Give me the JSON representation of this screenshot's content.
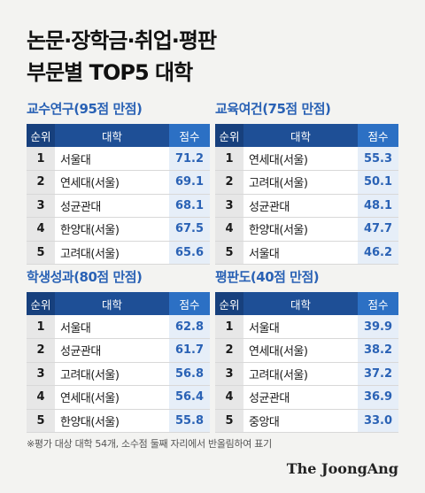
{
  "title": {
    "line1": "논문·장학금·취업·평판",
    "line2": "부문별 TOP5 대학"
  },
  "header": {
    "rank": "순위",
    "university": "대학",
    "score": "점수"
  },
  "panels": [
    {
      "title": "교수연구(95점 만점)",
      "rows": [
        {
          "rank": "1",
          "name": "서울대",
          "score": "71.2"
        },
        {
          "rank": "2",
          "name": "연세대(서울)",
          "score": "69.1"
        },
        {
          "rank": "3",
          "name": "성균관대",
          "score": "68.1"
        },
        {
          "rank": "4",
          "name": "한양대(서울)",
          "score": "67.5"
        },
        {
          "rank": "5",
          "name": "고려대(서울)",
          "score": "65.6"
        }
      ]
    },
    {
      "title": "교육여건(75점 만점)",
      "rows": [
        {
          "rank": "1",
          "name": "연세대(서울)",
          "score": "55.3"
        },
        {
          "rank": "2",
          "name": "고려대(서울)",
          "score": "50.1"
        },
        {
          "rank": "3",
          "name": "성균관대",
          "score": "48.1"
        },
        {
          "rank": "4",
          "name": "한양대(서울)",
          "score": "47.7"
        },
        {
          "rank": "5",
          "name": "서울대",
          "score": "46.2"
        }
      ]
    },
    {
      "title": "학생성과(80점 만점)",
      "rows": [
        {
          "rank": "1",
          "name": "서울대",
          "score": "62.8"
        },
        {
          "rank": "2",
          "name": "성균관대",
          "score": "61.7"
        },
        {
          "rank": "3",
          "name": "고려대(서울)",
          "score": "56.8"
        },
        {
          "rank": "4",
          "name": "연세대(서울)",
          "score": "56.4"
        },
        {
          "rank": "5",
          "name": "한양대(서울)",
          "score": "55.8"
        }
      ]
    },
    {
      "title": "평판도(40점 만점)",
      "rows": [
        {
          "rank": "1",
          "name": "서울대",
          "score": "39.9"
        },
        {
          "rank": "2",
          "name": "연세대(서울)",
          "score": "38.2"
        },
        {
          "rank": "3",
          "name": "고려대(서울)",
          "score": "37.2"
        },
        {
          "rank": "4",
          "name": "성균관대",
          "score": "36.9"
        },
        {
          "rank": "5",
          "name": "중앙대",
          "score": "33.0"
        }
      ]
    }
  ],
  "footnote": "※평가 대상 대학 54개, 소수점 둘째 자리에서 반올림하여 표기",
  "logo": "The JoongAng",
  "colors": {
    "accent": "#2a62b5",
    "header_bg": "#1e4f96",
    "score_bg": "#e6eef8",
    "page_bg": "#f3f3f1"
  }
}
